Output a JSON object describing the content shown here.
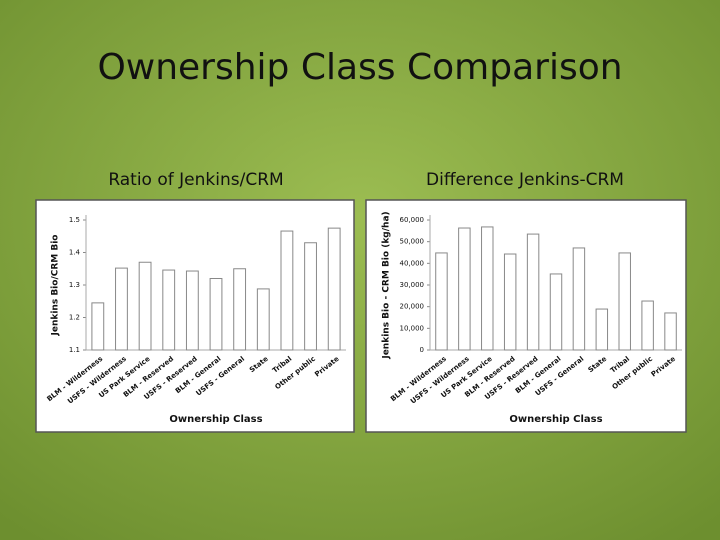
{
  "title": "Ownership Class Comparison",
  "chart_data": [
    {
      "type": "bar",
      "title": "Ratio of Jenkins/CRM",
      "y_label": "Jenkins Bio/CRM Bio",
      "x_label": "Ownership Class",
      "categories": [
        "BLM - Wilderness",
        "USFS - Wilderness",
        "US Park Service",
        "BLM - Reserved",
        "USFS - Reserved",
        "BLM - General",
        "USFS - General",
        "State",
        "Tribal",
        "Other public",
        "Private"
      ],
      "values": [
        1.245,
        1.352,
        1.37,
        1.346,
        1.343,
        1.32,
        1.35,
        1.288,
        1.466,
        1.43,
        1.475
      ],
      "color": "#ffffff",
      "edge_color": "#888888",
      "ylim": [
        1.1,
        1.5
      ],
      "yticks": [
        1.1,
        1.2,
        1.3,
        1.4,
        1.5
      ],
      "grid": false
    },
    {
      "type": "bar",
      "title": "Difference Jenkins-CRM",
      "y_label": "Jenkins Bio - CRM Bio (kg/ha)",
      "x_label": "Ownership Class",
      "categories": [
        "BLM - Wilderness",
        "USFS - Wilderness",
        "US Park Service",
        "BLM - Reserved",
        "USFS - Reserved",
        "BLM - General",
        "USFS - General",
        "State",
        "Tribal",
        "Other public",
        "Private"
      ],
      "values": [
        44800,
        56300,
        56800,
        44300,
        53500,
        35100,
        47100,
        18900,
        44800,
        22600,
        17100
      ],
      "color": "#ffffff",
      "edge_color": "#888888",
      "ylim": [
        0,
        60000
      ],
      "yticks": [
        0,
        {
          "value": 10000,
          "label": "10,000"
        },
        {
          "value": 20000,
          "label": "20,000"
        },
        {
          "value": 30000,
          "label": "30,000"
        },
        {
          "value": 40000,
          "label": "40,000"
        },
        {
          "value": 50000,
          "label": "50,000"
        },
        {
          "value": 60000,
          "label": "60,000"
        }
      ],
      "grid": false
    }
  ]
}
